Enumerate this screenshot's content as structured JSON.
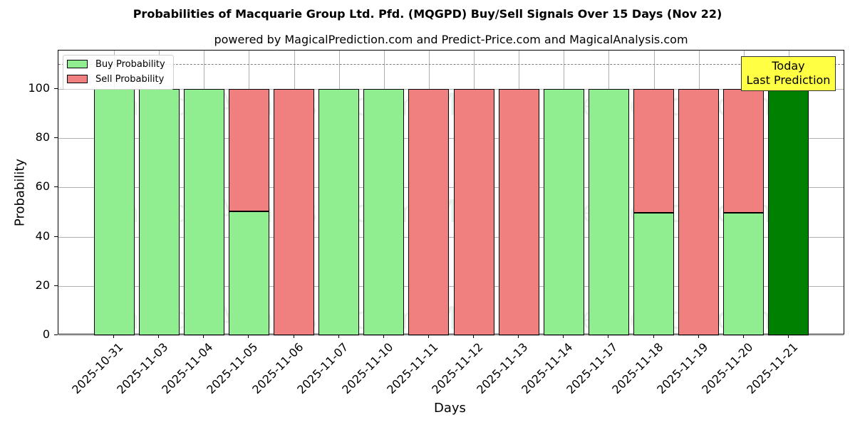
{
  "title": "Probabilities of Macquarie Group Ltd. Pfd. (MQGPD) Buy/Sell Signals Over 15 Days (Nov 22)",
  "subtitle": "powered by MagicalPrediction.com and Predict-Price.com and MagicalAnalysis.com",
  "xlabel": "Days",
  "ylabel": "Probability",
  "legend": {
    "buy_label": "Buy Probability",
    "sell_label": "Sell Probability"
  },
  "annotation": {
    "line1": "Today",
    "line2": "Last Prediction"
  },
  "watermarks": [
    "MagicalAnalysis.com",
    "MagicalPrediction.com"
  ],
  "colors": {
    "buy": "#90ee90",
    "sell": "#f08080",
    "today": "#008000",
    "annotation_bg": "#ffff44"
  },
  "yticks": [
    "0",
    "20",
    "40",
    "60",
    "80",
    "100"
  ],
  "chart_data": {
    "type": "bar",
    "stacked": true,
    "title": "Probabilities of Macquarie Group Ltd. Pfd. (MQGPD) Buy/Sell Signals Over 15 Days (Nov 22)",
    "subtitle": "powered by MagicalPrediction.com and Predict-Price.com and MagicalAnalysis.com",
    "xlabel": "Days",
    "ylabel": "Probability",
    "ylim": [
      0,
      115
    ],
    "grid": true,
    "legend_position": "upper left",
    "reference_line": {
      "y": 110,
      "style": "dashed",
      "color": "#808080"
    },
    "categories": [
      "2025-10-31",
      "2025-11-03",
      "2025-11-04",
      "2025-11-05",
      "2025-11-06",
      "2025-11-07",
      "2025-11-10",
      "2025-11-11",
      "2025-11-12",
      "2025-11-13",
      "2025-11-14",
      "2025-11-17",
      "2025-11-18",
      "2025-11-19",
      "2025-11-20",
      "2025-11-21"
    ],
    "series": [
      {
        "name": "Buy Probability",
        "color": "#90ee90",
        "values": [
          100,
          100,
          100,
          50.3,
          0,
          100,
          100,
          0,
          0,
          0,
          100,
          100,
          49.7,
          0,
          49.7,
          100
        ]
      },
      {
        "name": "Sell Probability",
        "color": "#f08080",
        "values": [
          0,
          0,
          0,
          49.7,
          100,
          0,
          0,
          100,
          100,
          100,
          0,
          0,
          50.3,
          100,
          50.3,
          0
        ]
      }
    ],
    "highlight": {
      "category": "2025-11-21",
      "color": "#008000",
      "label": "Today\nLast Prediction"
    }
  }
}
